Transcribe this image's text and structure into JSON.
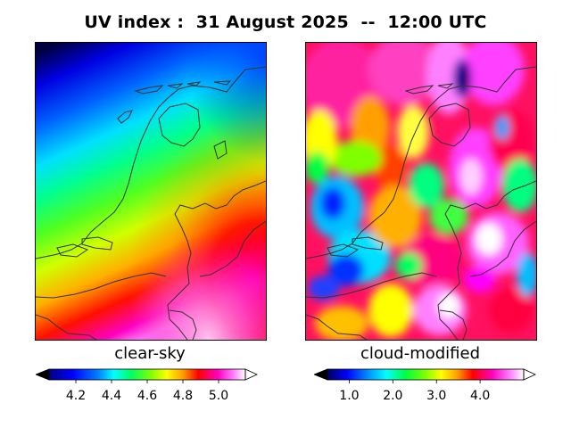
{
  "figure": {
    "title": "UV index :  31 August 2025  --  12:00 UTC"
  },
  "panels": [
    {
      "label": "clear-sky",
      "colorbar": {
        "ticks": [
          "4.2",
          "4.4",
          "4.6",
          "4.8",
          "5.0"
        ],
        "tick_values": [
          4.2,
          4.4,
          4.6,
          4.8,
          5.0
        ],
        "range": [
          4.05,
          5.15
        ],
        "extend": "both"
      }
    },
    {
      "label": "cloud-modified",
      "colorbar": {
        "ticks": [
          "1.0",
          "2.0",
          "3.0",
          "4.0"
        ],
        "tick_values": [
          1.0,
          2.0,
          3.0,
          4.0
        ],
        "range": [
          0.5,
          5.0
        ],
        "extend": "both"
      }
    }
  ],
  "colormap": {
    "name": "gist_ncar-like",
    "stops": [
      "#000060",
      "#0000ff",
      "#00ffff",
      "#00ff60",
      "#7fff00",
      "#ffff00",
      "#ff8000",
      "#ff0000",
      "#ff00b0",
      "#ff80ff",
      "#ffffff"
    ]
  },
  "colors": {
    "coastline": "#333333",
    "background": "#ffffff"
  }
}
